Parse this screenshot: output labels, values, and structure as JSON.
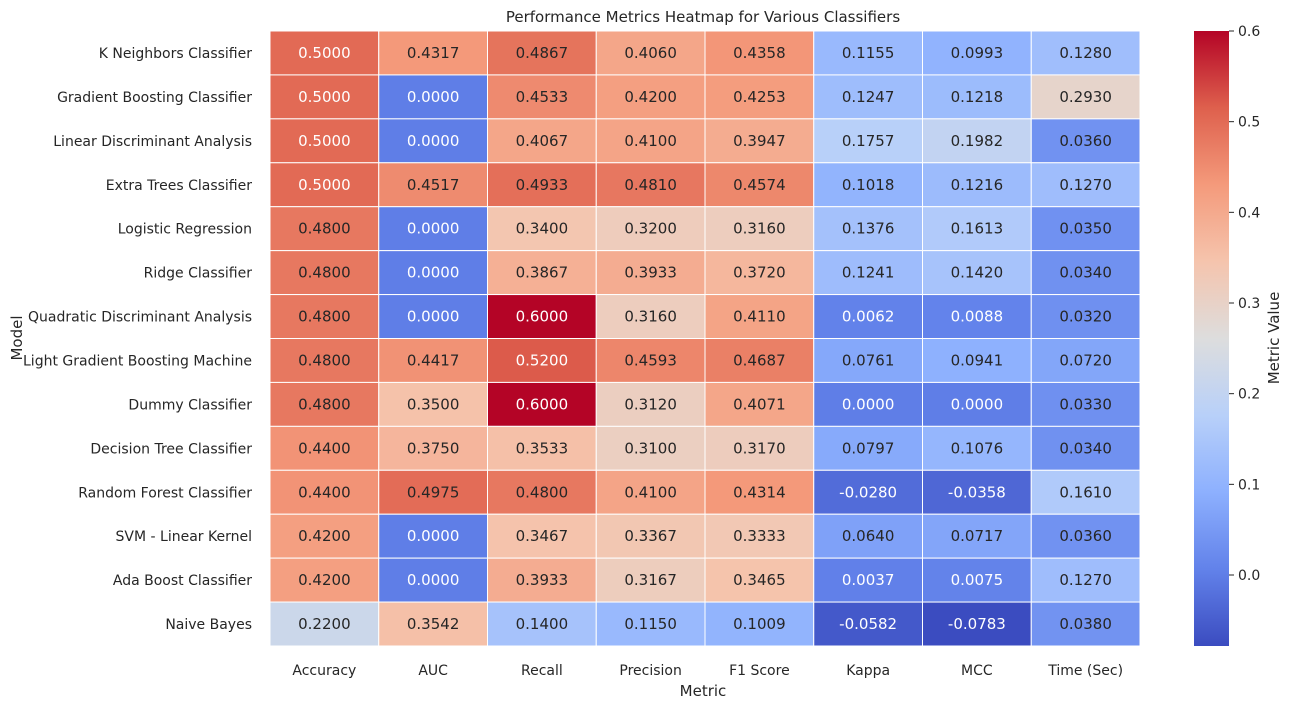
{
  "chart_data": {
    "type": "heatmap",
    "title": "Performance Metrics Heatmap for Various Classifiers",
    "xlabel": "Metric",
    "ylabel": "Model",
    "colorbar_label": "Metric Value",
    "colormap": "coolwarm",
    "vmin": -0.0783,
    "vmax": 0.6,
    "colorbar_ticks": [
      "0.0",
      "0.1",
      "0.2",
      "0.3",
      "0.4",
      "0.5",
      "0.6"
    ],
    "columns": [
      "Accuracy",
      "AUC",
      "Recall",
      "Precision",
      "F1 Score",
      "Kappa",
      "MCC",
      "Time (Sec)"
    ],
    "rows": [
      "K Neighbors Classifier",
      "Gradient Boosting Classifier",
      "Linear Discriminant Analysis",
      "Extra Trees Classifier",
      "Logistic Regression",
      "Ridge Classifier",
      "Quadratic Discriminant Analysis",
      "Light Gradient Boosting Machine",
      "Dummy Classifier",
      "Decision Tree Classifier",
      "Random Forest Classifier",
      "SVM - Linear Kernel",
      "Ada Boost Classifier",
      "Naive Bayes"
    ],
    "values": [
      [
        "0.5000",
        "0.4317",
        "0.4867",
        "0.4060",
        "0.4358",
        "0.1155",
        "0.0993",
        "0.1280"
      ],
      [
        "0.5000",
        "0.0000",
        "0.4533",
        "0.4200",
        "0.4253",
        "0.1247",
        "0.1218",
        "0.2930"
      ],
      [
        "0.5000",
        "0.0000",
        "0.4067",
        "0.4100",
        "0.3947",
        "0.1757",
        "0.1982",
        "0.0360"
      ],
      [
        "0.5000",
        "0.4517",
        "0.4933",
        "0.4810",
        "0.4574",
        "0.1018",
        "0.1216",
        "0.1270"
      ],
      [
        "0.4800",
        "0.0000",
        "0.3400",
        "0.3200",
        "0.3160",
        "0.1376",
        "0.1613",
        "0.0350"
      ],
      [
        "0.4800",
        "0.0000",
        "0.3867",
        "0.3933",
        "0.3720",
        "0.1241",
        "0.1420",
        "0.0340"
      ],
      [
        "0.4800",
        "0.0000",
        "0.6000",
        "0.3160",
        "0.4110",
        "0.0062",
        "0.0088",
        "0.0320"
      ],
      [
        "0.4800",
        "0.4417",
        "0.5200",
        "0.4593",
        "0.4687",
        "0.0761",
        "0.0941",
        "0.0720"
      ],
      [
        "0.4800",
        "0.3500",
        "0.6000",
        "0.3120",
        "0.4071",
        "0.0000",
        "0.0000",
        "0.0330"
      ],
      [
        "0.4400",
        "0.3750",
        "0.3533",
        "0.3100",
        "0.3170",
        "0.0797",
        "0.1076",
        "0.0340"
      ],
      [
        "0.4400",
        "0.4975",
        "0.4800",
        "0.4100",
        "0.4314",
        "-0.0280",
        "-0.0358",
        "0.1610"
      ],
      [
        "0.4200",
        "0.0000",
        "0.3467",
        "0.3367",
        "0.3333",
        "0.0640",
        "0.0717",
        "0.0360"
      ],
      [
        "0.4200",
        "0.0000",
        "0.3933",
        "0.3167",
        "0.3465",
        "0.0037",
        "0.0075",
        "0.1270"
      ],
      [
        "0.2200",
        "0.3542",
        "0.1400",
        "0.1150",
        "0.1009",
        "-0.0582",
        "-0.0783",
        "0.0380"
      ]
    ]
  }
}
